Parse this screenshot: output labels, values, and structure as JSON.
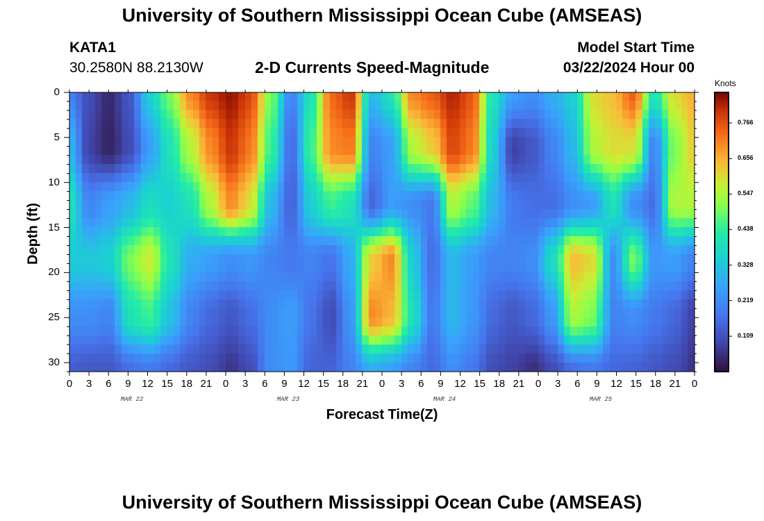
{
  "chart_data": {
    "type": "heatmap",
    "title": "University of Southern Mississippi Ocean Cube (AMSEAS)",
    "subtitle": "2-D Currents Speed-Magnitude",
    "station": {
      "name": "KATA1",
      "location": "30.2580N  88.2130W"
    },
    "model_start": {
      "label": "Model Start Time",
      "value": "03/22/2024 Hour 00"
    },
    "xlabel": "Forecast Time(Z)",
    "ylabel": "Depth (ft)",
    "x_hours": [
      0,
      96
    ],
    "ylim": [
      0,
      31
    ],
    "x_tick_labels": [
      "0",
      "3",
      "6",
      "9",
      "12",
      "15",
      "18",
      "21",
      "0",
      "3",
      "6",
      "9",
      "12",
      "15",
      "18",
      "21",
      "0",
      "3",
      "6",
      "9",
      "12",
      "15",
      "18",
      "21",
      "0",
      "3",
      "6",
      "9",
      "12",
      "15",
      "18",
      "21",
      "0"
    ],
    "y_tick_labels": [
      "0",
      "5",
      "10",
      "15",
      "20",
      "25",
      "30"
    ],
    "date_labels": [
      "MAR 22",
      "MAR 23",
      "MAR 24",
      "MAR 25"
    ],
    "colorbar": {
      "unit": "Knots",
      "range": [
        0.0,
        0.86
      ],
      "tick_labels": [
        "0.766",
        "0.656",
        "0.547",
        "0.438",
        "0.328",
        "0.219",
        "0.109"
      ]
    },
    "speed_columns": [
      [
        0.2,
        0.3,
        0.4,
        0.34,
        0.22,
        0.13
      ],
      [
        0.1,
        0.08,
        0.2,
        0.33,
        0.22,
        0.12
      ],
      [
        0.04,
        0.03,
        0.25,
        0.35,
        0.2,
        0.12
      ],
      [
        0.12,
        0.1,
        0.3,
        0.5,
        0.4,
        0.16
      ],
      [
        0.35,
        0.25,
        0.38,
        0.58,
        0.45,
        0.18
      ],
      [
        0.5,
        0.4,
        0.35,
        0.4,
        0.32,
        0.15
      ],
      [
        0.7,
        0.55,
        0.4,
        0.28,
        0.2,
        0.12
      ],
      [
        0.8,
        0.7,
        0.55,
        0.25,
        0.15,
        0.1
      ],
      [
        0.84,
        0.8,
        0.7,
        0.22,
        0.12,
        0.06
      ],
      [
        0.78,
        0.72,
        0.6,
        0.24,
        0.16,
        0.1
      ],
      [
        0.5,
        0.45,
        0.3,
        0.2,
        0.22,
        0.22
      ],
      [
        0.2,
        0.15,
        0.14,
        0.18,
        0.25,
        0.24
      ],
      [
        0.4,
        0.45,
        0.35,
        0.2,
        0.17,
        0.14
      ],
      [
        0.74,
        0.7,
        0.45,
        0.17,
        0.1,
        0.14
      ],
      [
        0.8,
        0.72,
        0.4,
        0.28,
        0.24,
        0.2
      ],
      [
        0.3,
        0.2,
        0.15,
        0.62,
        0.7,
        0.28
      ],
      [
        0.4,
        0.25,
        0.25,
        0.7,
        0.65,
        0.25
      ],
      [
        0.7,
        0.55,
        0.22,
        0.35,
        0.4,
        0.2
      ],
      [
        0.75,
        0.62,
        0.18,
        0.16,
        0.18,
        0.15
      ],
      [
        0.82,
        0.78,
        0.55,
        0.3,
        0.3,
        0.22
      ],
      [
        0.76,
        0.72,
        0.48,
        0.25,
        0.24,
        0.18
      ],
      [
        0.4,
        0.35,
        0.3,
        0.2,
        0.15,
        0.1
      ],
      [
        0.25,
        0.08,
        0.18,
        0.2,
        0.12,
        0.08
      ],
      [
        0.22,
        0.12,
        0.16,
        0.22,
        0.15,
        0.05
      ],
      [
        0.28,
        0.2,
        0.16,
        0.38,
        0.24,
        0.1
      ],
      [
        0.35,
        0.3,
        0.22,
        0.64,
        0.55,
        0.16
      ],
      [
        0.6,
        0.55,
        0.25,
        0.6,
        0.5,
        0.18
      ],
      [
        0.64,
        0.6,
        0.4,
        0.22,
        0.2,
        0.15
      ],
      [
        0.75,
        0.6,
        0.22,
        0.5,
        0.22,
        0.14
      ],
      [
        0.4,
        0.2,
        0.16,
        0.24,
        0.18,
        0.12
      ],
      [
        0.6,
        0.5,
        0.55,
        0.25,
        0.15,
        0.1
      ],
      [
        0.66,
        0.62,
        0.55,
        0.2,
        0.08,
        0.06
      ]
    ]
  }
}
